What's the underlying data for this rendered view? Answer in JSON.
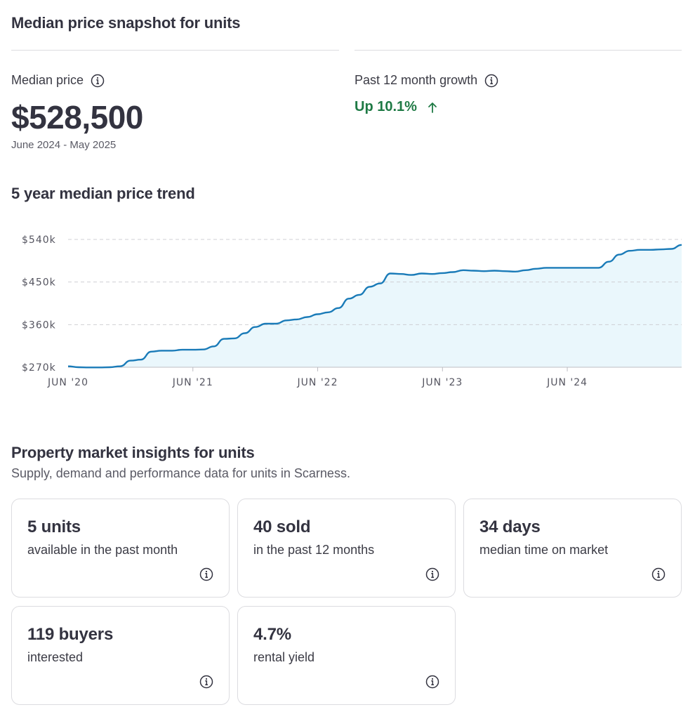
{
  "snapshot": {
    "title": "Median price snapshot for units",
    "median_label": "Median price",
    "median_value": "$528,500",
    "period": "June 2024 - May 2025",
    "growth_label": "Past 12 month growth",
    "growth_value": "Up 10.1%"
  },
  "trend": {
    "title": "5 year median price trend"
  },
  "chart_data": {
    "type": "area",
    "title": "5 year median price trend",
    "xlabel": "",
    "ylabel": "",
    "y_ticks": [
      "$270k",
      "$360k",
      "$450k",
      "$540k"
    ],
    "y_tick_values": [
      270000,
      360000,
      450000,
      540000
    ],
    "x_ticks": [
      "JUN '20",
      "JUN '21",
      "JUN '22",
      "JUN '23",
      "JUN '24"
    ],
    "ylim": [
      270000,
      540000
    ],
    "xlim": [
      "2020-06",
      "2025-05"
    ],
    "grid": true,
    "colors": {
      "line": "#1a7bb8",
      "fill": "#eaf7fc",
      "grid": "#cfcfd4"
    },
    "x": [
      "2020-06",
      "2020-07",
      "2020-08",
      "2020-09",
      "2020-10",
      "2020-11",
      "2020-12",
      "2021-01",
      "2021-02",
      "2021-03",
      "2021-04",
      "2021-05",
      "2021-06",
      "2021-07",
      "2021-08",
      "2021-09",
      "2021-10",
      "2021-11",
      "2021-12",
      "2022-01",
      "2022-02",
      "2022-03",
      "2022-04",
      "2022-05",
      "2022-06",
      "2022-07",
      "2022-08",
      "2022-09",
      "2022-10",
      "2022-11",
      "2022-12",
      "2023-01",
      "2023-02",
      "2023-03",
      "2023-04",
      "2023-05",
      "2023-06",
      "2023-07",
      "2023-08",
      "2023-09",
      "2023-10",
      "2023-11",
      "2023-12",
      "2024-01",
      "2024-02",
      "2024-03",
      "2024-04",
      "2024-05",
      "2024-06",
      "2024-07",
      "2024-08",
      "2024-09",
      "2024-10",
      "2024-11",
      "2024-12",
      "2025-01",
      "2025-02",
      "2025-03",
      "2025-04",
      "2025-05"
    ],
    "values": [
      272000,
      270000,
      269500,
      269500,
      270000,
      272000,
      284000,
      286000,
      303000,
      305000,
      305000,
      307000,
      307000,
      307500,
      314000,
      330000,
      331000,
      342000,
      355000,
      362000,
      362000,
      369000,
      371000,
      376000,
      382000,
      386000,
      395000,
      415000,
      423000,
      440000,
      447000,
      468000,
      467000,
      465000,
      468000,
      467000,
      469000,
      471000,
      475000,
      474000,
      473000,
      474000,
      473000,
      472000,
      475000,
      478000,
      480000,
      480000,
      480000,
      480000,
      480000,
      480000,
      493000,
      508000,
      516000,
      518000,
      518000,
      519000,
      520000,
      528500
    ]
  },
  "insights": {
    "title": "Property market insights for units",
    "subtitle": "Supply, demand and performance data for units in Scarness.",
    "cards": [
      {
        "value": "5 units",
        "label": "available in the past month"
      },
      {
        "value": "40 sold",
        "label": "in the past 12 months"
      },
      {
        "value": "34 days",
        "label": "median time on market"
      },
      {
        "value": "119 buyers",
        "label": "interested"
      },
      {
        "value": "4.7%",
        "label": "rental yield"
      }
    ]
  },
  "icons": {
    "info": "info-icon",
    "growth_arrow": "arrow-up-icon"
  }
}
